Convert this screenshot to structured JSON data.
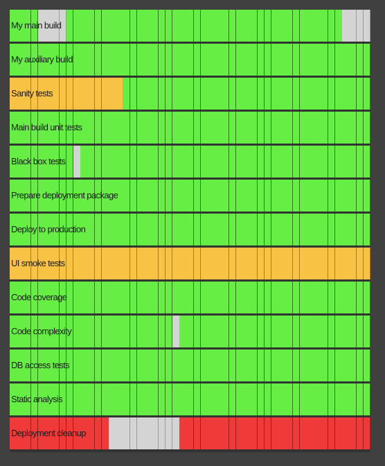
{
  "colors": {
    "pass": "#66ee44",
    "warning": "#f8c244",
    "fail": "#f03a3a",
    "unknown": "#d4d4d4",
    "background": "#404040",
    "cell_divider": "#2e7a12"
  },
  "history_length": 51,
  "rows": [
    {
      "label": "My main build",
      "status": "pass",
      "exceptions": [
        {
          "from": 4,
          "to": 7,
          "status": "unknown"
        },
        {
          "from": 47,
          "to": 50,
          "status": "unknown"
        }
      ]
    },
    {
      "label": "My auxiliary build",
      "status": "pass",
      "exceptions": []
    },
    {
      "label": "Sanity tests",
      "status": "pass",
      "exceptions": [
        {
          "from": 0,
          "to": 15,
          "status": "warning"
        }
      ]
    },
    {
      "label": "Main build unit tests",
      "status": "pass",
      "exceptions": []
    },
    {
      "label": "Black box tests",
      "status": "pass",
      "exceptions": [
        {
          "from": 9,
          "to": 9,
          "status": "unknown"
        }
      ]
    },
    {
      "label": "Prepare deployment package",
      "status": "pass",
      "exceptions": []
    },
    {
      "label": "Deploy to production",
      "status": "pass",
      "exceptions": []
    },
    {
      "label": "UI smoke tests",
      "status": "warning",
      "exceptions": []
    },
    {
      "label": "Code coverage",
      "status": "pass",
      "exceptions": []
    },
    {
      "label": "Code complexity",
      "status": "pass",
      "exceptions": [
        {
          "from": 23,
          "to": 23,
          "status": "unknown"
        }
      ]
    },
    {
      "label": "DB access tests",
      "status": "pass",
      "exceptions": []
    },
    {
      "label": "Static analysis",
      "status": "pass",
      "exceptions": []
    },
    {
      "label": "Deployment cleanup",
      "status": "fail",
      "exceptions": [
        {
          "from": 14,
          "to": 23,
          "status": "unknown"
        }
      ]
    }
  ]
}
